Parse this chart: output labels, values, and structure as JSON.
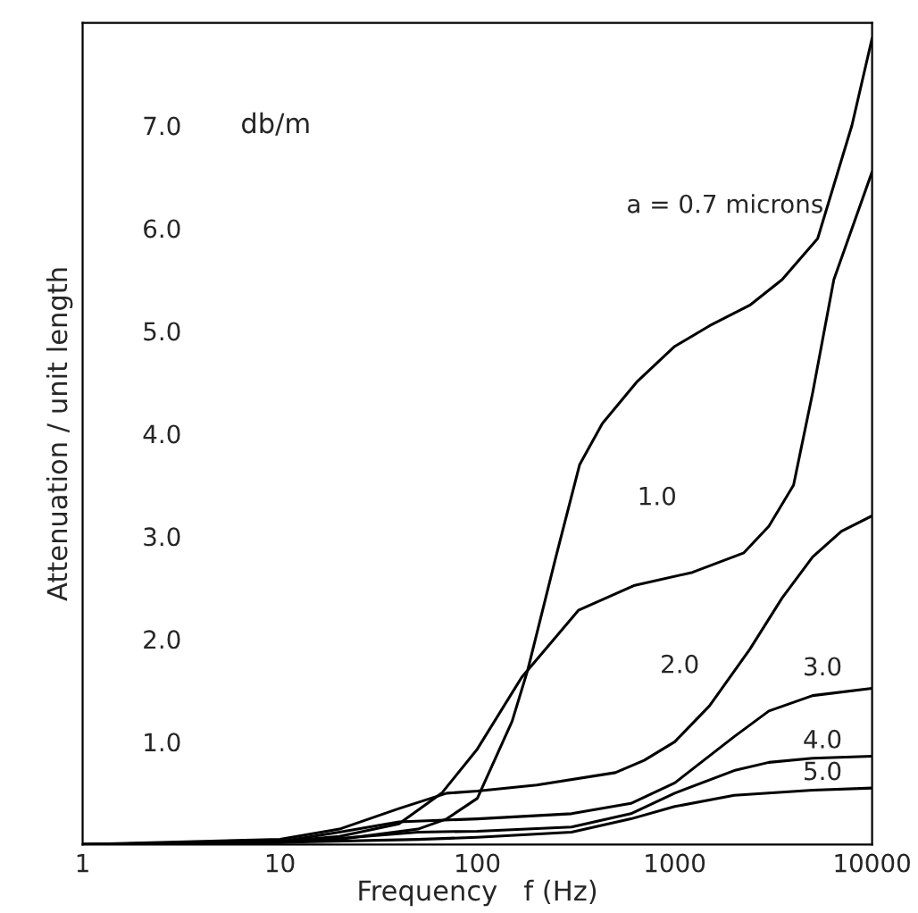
{
  "chart_data": {
    "type": "line",
    "xlabel": "Frequency   f (Hz)",
    "ylabel": "Attenuation / unit length",
    "log": "x",
    "xlim": [
      1,
      10000
    ],
    "xticks": [
      1,
      10,
      100,
      1000,
      10000
    ],
    "ylim": [
      0,
      8
    ],
    "yticks": [
      {
        "value": 1,
        "label": "1.0"
      },
      {
        "value": 2,
        "label": "2.0"
      },
      {
        "value": 3,
        "label": "3.0"
      },
      {
        "value": 4,
        "label": "4.0"
      },
      {
        "value": 5,
        "label": "5.0"
      },
      {
        "value": 6,
        "label": "6.0"
      },
      {
        "value": 7,
        "label": "7.0"
      }
    ],
    "annotations": [
      {
        "text": "db/m"
      }
    ],
    "grid": false,
    "legend": false,
    "line_style": "solid",
    "marker": "none",
    "series": [
      {
        "name": "a = 0.7 microns",
        "color": "#000000",
        "x": [
          1,
          10,
          20,
          50,
          70,
          100,
          150,
          180,
          250,
          330,
          430,
          640,
          1000,
          1500,
          2400,
          3500,
          5300,
          7900,
          10000
        ],
        "values": [
          0,
          0.02,
          0.05,
          0.15,
          0.25,
          0.45,
          1.2,
          1.7,
          2.8,
          3.7,
          4.1,
          4.5,
          4.85,
          5.05,
          5.25,
          5.5,
          5.9,
          7.0,
          7.85
        ]
      },
      {
        "name": "1.0",
        "color": "#000000",
        "x": [
          1,
          10,
          20,
          40,
          66,
          100,
          168,
          325,
          620,
          1230,
          2240,
          3000,
          4000,
          5000,
          6400,
          10000
        ],
        "values": [
          0,
          0.03,
          0.08,
          0.2,
          0.5,
          0.93,
          1.63,
          2.28,
          2.52,
          2.65,
          2.84,
          3.1,
          3.5,
          4.4,
          5.5,
          6.55
        ]
      },
      {
        "name": "2.0",
        "color": "#000000",
        "x": [
          1,
          10,
          20,
          40,
          70,
          100,
          200,
          500,
          700,
          1000,
          1500,
          2400,
          3500,
          5000,
          7000,
          10000
        ],
        "values": [
          0,
          0.05,
          0.15,
          0.35,
          0.5,
          0.52,
          0.58,
          0.7,
          0.82,
          1.0,
          1.35,
          1.9,
          2.4,
          2.8,
          3.05,
          3.2
        ]
      },
      {
        "name": "3.0",
        "color": "#000000",
        "x": [
          1,
          10,
          20,
          40,
          100,
          300,
          600,
          1000,
          2000,
          3000,
          5000,
          10000
        ],
        "values": [
          0,
          0.03,
          0.12,
          0.22,
          0.25,
          0.3,
          0.4,
          0.6,
          1.05,
          1.3,
          1.45,
          1.52
        ]
      },
      {
        "name": "4.0",
        "color": "#000000",
        "x": [
          1,
          10,
          20,
          50,
          100,
          300,
          600,
          1000,
          2000,
          3000,
          5000,
          10000
        ],
        "values": [
          0,
          0.02,
          0.06,
          0.12,
          0.13,
          0.17,
          0.3,
          0.5,
          0.72,
          0.8,
          0.84,
          0.86
        ]
      },
      {
        "name": "5.0",
        "color": "#000000",
        "x": [
          1,
          10,
          50,
          100,
          300,
          600,
          1000,
          2000,
          5000,
          10000
        ],
        "values": [
          0,
          0.02,
          0.05,
          0.07,
          0.12,
          0.25,
          0.37,
          0.48,
          0.53,
          0.55
        ]
      }
    ]
  }
}
